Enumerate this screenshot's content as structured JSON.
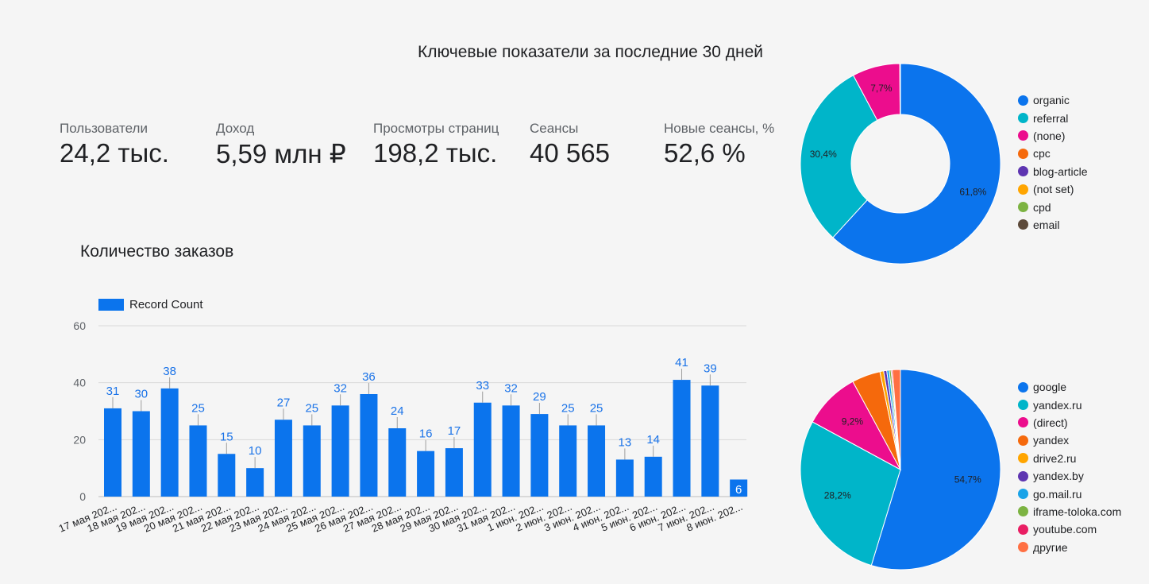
{
  "header": {
    "title": "Ключевые показатели за последние 30 дней"
  },
  "kpis": [
    {
      "label": "Пользователи",
      "value": "24,2 тыс."
    },
    {
      "label": "Доход",
      "value": "5,59 млн ₽"
    },
    {
      "label": "Просмотры страниц",
      "value": "198,2 тыс."
    },
    {
      "label": "Сеансы",
      "value": "40 565"
    },
    {
      "label": "Новые сеансы, %",
      "value": "52,6 %"
    }
  ],
  "orders": {
    "title": "Количество заказов"
  },
  "chart_data": [
    {
      "type": "bar",
      "title": "Количество заказов",
      "categories": [
        "17 мая 202...",
        "18 мая 202...",
        "19 мая 202...",
        "20 мая 202...",
        "21 мая 202...",
        "22 мая 202...",
        "23 мая 202...",
        "24 мая 202...",
        "25 мая 202...",
        "26 мая 202...",
        "27 мая 202...",
        "28 мая 202...",
        "29 мая 202...",
        "30 мая 202...",
        "31 мая 202...",
        "1 июн. 202...",
        "2 июн. 202...",
        "3 июн. 202...",
        "4 июн. 202...",
        "5 июн. 202...",
        "6 июн. 202...",
        "7 июн. 202...",
        "8 июн. 202..."
      ],
      "series": [
        {
          "name": "Record Count",
          "values": [
            31,
            30,
            38,
            25,
            15,
            10,
            27,
            25,
            32,
            36,
            24,
            16,
            17,
            33,
            32,
            29,
            25,
            25,
            13,
            14,
            41,
            39,
            6
          ]
        }
      ],
      "ylim": [
        0,
        60
      ],
      "yticks": [
        0,
        20,
        40,
        60
      ],
      "grid": true,
      "legend": "top-left",
      "color": "#0b74ed",
      "label_color": "#1a73e8",
      "last_label_color": "#ffffff"
    },
    {
      "type": "pie",
      "variant": "donut",
      "legend": "right",
      "slices": [
        {
          "label": "organic",
          "value": 61.8,
          "display": "61,8%",
          "color": "#0b74ed"
        },
        {
          "label": "referral",
          "value": 30.4,
          "display": "30,4%",
          "color": "#00b5c9"
        },
        {
          "label": "(none)",
          "value": 7.7,
          "display": "7,7%",
          "color": "#ec0d8d"
        },
        {
          "label": "cpc",
          "value": 0.05,
          "display": "",
          "color": "#f5690c"
        },
        {
          "label": "blog-article",
          "value": 0.02,
          "display": "",
          "color": "#5e35b1"
        },
        {
          "label": "(not set)",
          "value": 0.02,
          "display": "",
          "color": "#ffa500"
        },
        {
          "label": "cpd",
          "value": 0.01,
          "display": "",
          "color": "#7cb342"
        },
        {
          "label": "email",
          "value": 0.01,
          "display": "",
          "color": "#5d4a3a"
        }
      ]
    },
    {
      "type": "pie",
      "legend": "right",
      "slices": [
        {
          "label": "google",
          "value": 54.7,
          "display": "54,7%",
          "color": "#0b74ed"
        },
        {
          "label": "yandex.ru",
          "value": 28.2,
          "display": "28,2%",
          "color": "#00b5c9"
        },
        {
          "label": "(direct)",
          "value": 9.2,
          "display": "9,2%",
          "color": "#ec0d8d"
        },
        {
          "label": "yandex",
          "value": 4.6,
          "display": "",
          "color": "#f5690c"
        },
        {
          "label": "drive2.ru",
          "value": 0.6,
          "display": "",
          "color": "#ffa500"
        },
        {
          "label": "yandex.by",
          "value": 0.5,
          "display": "",
          "color": "#5e35b1"
        },
        {
          "label": "go.mail.ru",
          "value": 0.4,
          "display": "",
          "color": "#1aa3e8"
        },
        {
          "label": "iframe-toloka.com",
          "value": 0.3,
          "display": "",
          "color": "#7cb342"
        },
        {
          "label": "youtube.com",
          "value": 0.2,
          "display": "",
          "color": "#e91e63"
        },
        {
          "label": "другие",
          "value": 1.3,
          "display": "",
          "color": "#ff7043"
        }
      ]
    }
  ]
}
